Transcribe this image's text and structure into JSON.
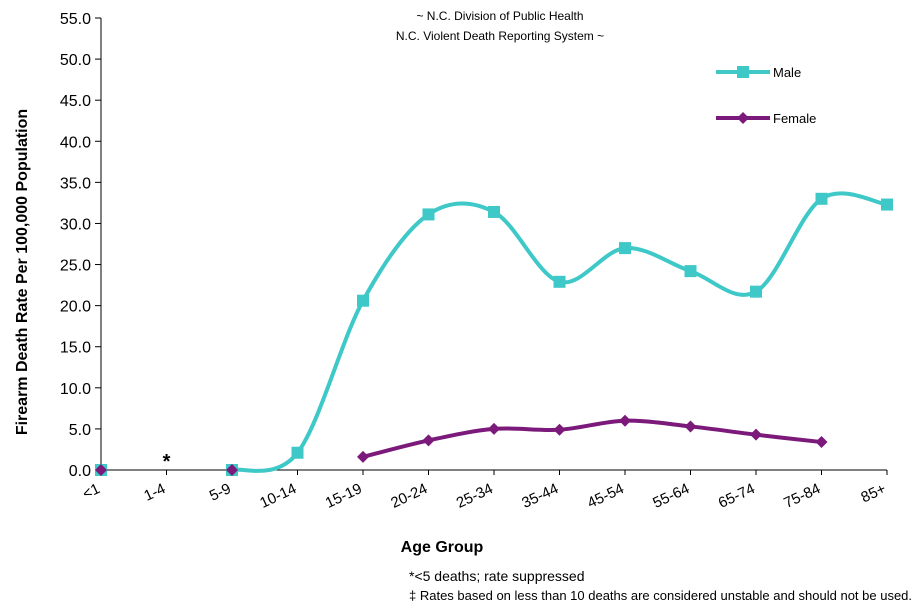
{
  "chart_data": {
    "type": "line",
    "annotation": [
      "~ N.C. Division of Public Health",
      "N.C. Violent Death Reporting System ~"
    ],
    "xlabel": "Age Group",
    "ylabel": "Firearm Death  Rate Per 100,000 Population",
    "categories": [
      "<1",
      "1-4",
      "5-9",
      "10-14",
      "15-19",
      "20-24",
      "25-34",
      "35-44",
      "45-54",
      "55-64",
      "65-74",
      "75-84",
      "85+"
    ],
    "ylim": [
      0,
      55
    ],
    "ytick_step": 5,
    "ytick_labels": [
      "0.0",
      "5.0",
      "10.0",
      "15.0",
      "20.0",
      "25.0",
      "30.0",
      "35.0",
      "40.0",
      "45.0",
      "50.0",
      "55.0"
    ],
    "grid": false,
    "legend_position": "top-right",
    "suppressed_marker": {
      "category": "1-4",
      "label": "*"
    },
    "series": [
      {
        "name": "Male",
        "color": "#3ec8c8",
        "marker": "square",
        "values": [
          0.0,
          null,
          0.0,
          2.1,
          20.6,
          31.1,
          31.4,
          22.9,
          27.0,
          24.2,
          21.7,
          33.0,
          32.3
        ]
      },
      {
        "name": "Female",
        "color": "#7b1a7b",
        "marker": "diamond",
        "values": [
          0.0,
          null,
          0.0,
          null,
          1.6,
          3.6,
          5.0,
          4.9,
          6.0,
          5.3,
          4.3,
          3.4,
          null
        ]
      }
    ]
  },
  "footnotes": {
    "suppressed": "*<5 deaths; rate suppressed",
    "unstable": "‡ Rates based on less than 10 deaths are considered unstable and should not be used."
  }
}
